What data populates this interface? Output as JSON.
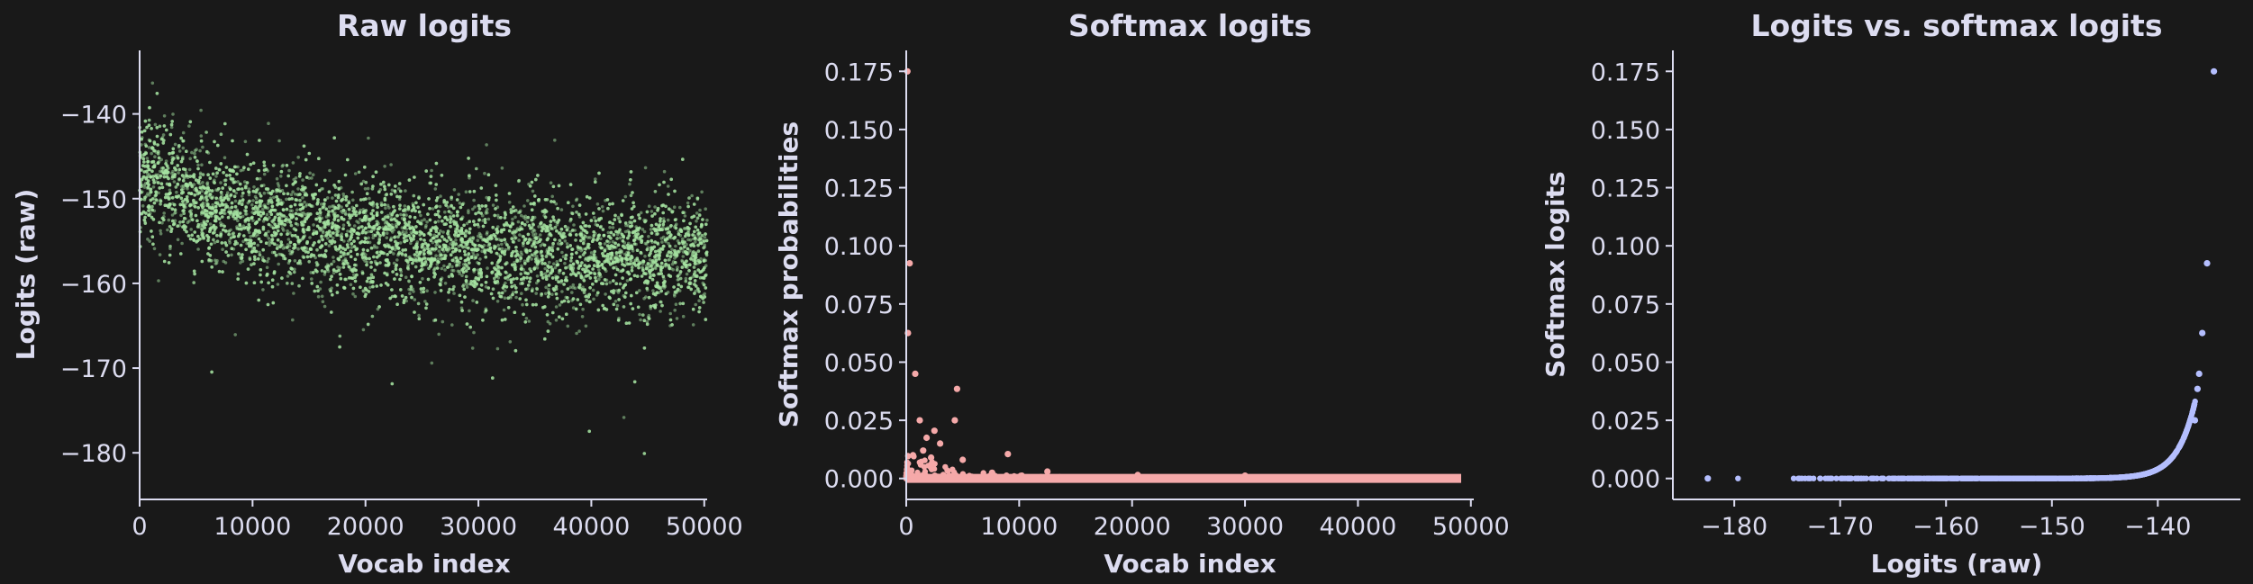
{
  "chart_data": [
    {
      "type": "scatter",
      "title": "Raw logits",
      "xlabel": "Vocab index",
      "ylabel": "Logits (raw)",
      "xlim": [
        0,
        50257
      ],
      "ylim": [
        -185.5,
        -132.5
      ],
      "xticks": [
        0,
        10000,
        20000,
        30000,
        40000,
        50000
      ],
      "yticks": [
        -140,
        -150,
        -160,
        -170,
        -180
      ],
      "color": "#a6e3a1",
      "series": [
        {
          "n_points": 50257,
          "start_mean": -147,
          "end_mean": -157,
          "spread": 3.5,
          "max": -135,
          "min": -182.5
        }
      ]
    },
    {
      "type": "scatter",
      "title": "Softmax logits",
      "xlabel": "Vocab index",
      "ylabel": "Softmax probabilities",
      "xlim": [
        0,
        50257
      ],
      "ylim": [
        -0.009,
        0.184
      ],
      "xticks": [
        0,
        10000,
        20000,
        30000,
        40000,
        50000
      ],
      "yticks": [
        "0.000",
        "0.025",
        "0.050",
        "0.075",
        "0.100",
        "0.125",
        "0.150",
        "0.175"
      ],
      "color": "#f5a9a9",
      "series": [
        {
          "points": [
            [
              100,
              0.175
            ],
            [
              300,
              0.0925
            ],
            [
              150,
              0.0625
            ],
            [
              800,
              0.045
            ],
            [
              4500,
              0.0385
            ],
            [
              4300,
              0.025
            ],
            [
              1200,
              0.025
            ],
            [
              2500,
              0.0205
            ],
            [
              1800,
              0.0175
            ],
            [
              3000,
              0.015
            ],
            [
              1500,
              0.012
            ],
            [
              9000,
              0.0105
            ],
            [
              600,
              0.01
            ],
            [
              2200,
              0.009
            ],
            [
              5000,
              0.008
            ],
            [
              12500,
              0.003
            ],
            [
              7600,
              0.0025
            ],
            [
              20500,
              0.0015
            ],
            [
              30000,
              0.0012
            ]
          ]
        }
      ]
    },
    {
      "type": "scatter",
      "title": "Logits vs. softmax logits",
      "xlabel": "Logits (raw)",
      "ylabel": "Softmax logits",
      "xlim": [
        -185.8,
        -132.2
      ],
      "ylim": [
        -0.009,
        0.184
      ],
      "xticks": [
        -180,
        -170,
        -160,
        -150,
        -140
      ],
      "yticks": [
        "0.000",
        "0.025",
        "0.050",
        "0.075",
        "0.100",
        "0.125",
        "0.150",
        "0.175"
      ],
      "color": "#b4befe",
      "series": [
        {
          "curve_peak": [
            -134.7,
            0.175
          ],
          "points": [
            [
              -134.7,
              0.175
            ],
            [
              -135.35,
              0.0925
            ],
            [
              -135.8,
              0.0625
            ],
            [
              -136.1,
              0.045
            ],
            [
              -136.25,
              0.0385
            ],
            [
              -136.5,
              0.025
            ],
            [
              -182.5,
              0.0
            ]
          ]
        }
      ]
    }
  ]
}
